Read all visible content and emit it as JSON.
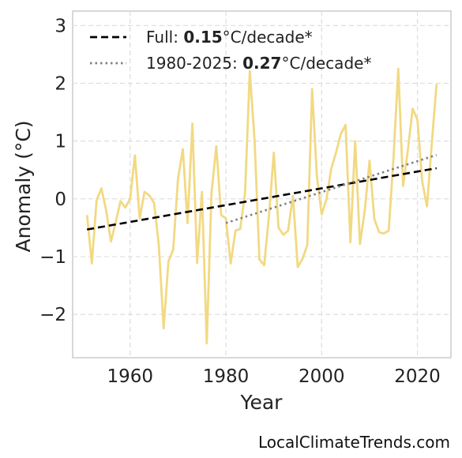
{
  "chart_data": {
    "type": "line",
    "xlabel": "Year",
    "ylabel": "Anomaly (°C)",
    "xlim": [
      1948,
      2027
    ],
    "ylim": [
      -2.75,
      3.25
    ],
    "xticks": [
      1960,
      1980,
      2000,
      2020
    ],
    "yticks": [
      -2,
      -1,
      0,
      1,
      2,
      3
    ],
    "ytick_labels": [
      "−2",
      "−1",
      "0",
      "1",
      "2",
      "3"
    ],
    "grid": true,
    "legend_position": "top-left",
    "series": [
      {
        "style": "solid",
        "color": "#f2d982",
        "x": [
          1951,
          1952,
          1953,
          1954,
          1955,
          1956,
          1957,
          1958,
          1959,
          1960,
          1961,
          1962,
          1963,
          1964,
          1965,
          1966,
          1967,
          1968,
          1969,
          1970,
          1971,
          1972,
          1973,
          1974,
          1975,
          1976,
          1977,
          1978,
          1979,
          1980,
          1981,
          1982,
          1983,
          1984,
          1985,
          1986,
          1987,
          1988,
          1989,
          1990,
          1991,
          1992,
          1993,
          1994,
          1995,
          1996,
          1997,
          1998,
          1999,
          2000,
          2001,
          2002,
          2003,
          2004,
          2005,
          2006,
          2007,
          2008,
          2009,
          2010,
          2011,
          2012,
          2013,
          2014,
          2015,
          2016,
          2017,
          2018,
          2019,
          2020,
          2021,
          2022,
          2023,
          2024
        ],
        "values": [
          -0.28,
          -1.12,
          -0.02,
          0.18,
          -0.2,
          -0.74,
          -0.4,
          -0.04,
          -0.15,
          -0.0,
          0.75,
          -0.34,
          0.12,
          0.06,
          -0.07,
          -0.8,
          -2.24,
          -1.08,
          -0.88,
          0.35,
          0.86,
          -0.42,
          1.3,
          -1.11,
          0.12,
          -2.5,
          0.1,
          0.91,
          -0.28,
          -0.34,
          -1.12,
          -0.55,
          -0.52,
          0.1,
          2.21,
          1.0,
          -1.05,
          -1.15,
          -0.29,
          0.8,
          -0.5,
          -0.62,
          -0.55,
          0.05,
          -1.18,
          -1.04,
          -0.8,
          1.9,
          0.4,
          -0.27,
          -0.01,
          0.52,
          0.8,
          1.12,
          1.28,
          -0.75,
          1.0,
          -0.78,
          -0.2,
          0.66,
          -0.35,
          -0.58,
          -0.6,
          -0.55,
          0.69,
          2.25,
          0.22,
          0.84,
          1.56,
          1.37,
          0.3,
          -0.13,
          0.95,
          1.99
        ]
      },
      {
        "name": "Full",
        "style": "dashed",
        "color": "#000000",
        "x": [
          1951,
          2024
        ],
        "values": [
          -0.53,
          0.53
        ],
        "legend_bold": "0.15",
        "legend_rest": "°C/decade*"
      },
      {
        "name": "1980-2025",
        "style": "dotted",
        "color": "#808080",
        "x": [
          1980,
          2024
        ],
        "values": [
          -0.42,
          0.76
        ],
        "legend_bold": "0.27",
        "legend_rest": "°C/decade*"
      }
    ]
  },
  "watermark": "LocalClimateTrends.com"
}
